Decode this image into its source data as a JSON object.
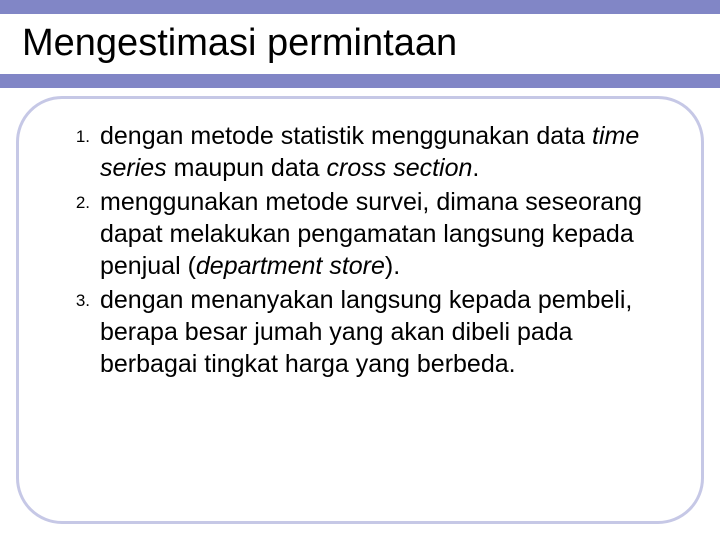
{
  "colors": {
    "accent": "#8186c6",
    "frame": "#c6c8e6",
    "text": "#000000",
    "background": "#ffffff"
  },
  "title": "Mengestimasi permintaan",
  "items": [
    {
      "num": "1.",
      "plain1": "dengan metode statistik menggunakan data ",
      "ital1": "time series",
      "plain2": " maupun data ",
      "ital2": "cross section",
      "plain3": "."
    },
    {
      "num": "2.",
      "plain1": "menggunakan metode survei, dimana seseorang dapat melakukan pengamatan langsung kepada penjual (",
      "ital1": "department store",
      "plain2": ").",
      "ital2": "",
      "plain3": ""
    },
    {
      "num": "3.",
      "plain1": "dengan menanyakan langsung kepada pembeli, berapa besar jumah yang akan dibeli pada berbagai tingkat harga yang berbeda.",
      "ital1": "",
      "plain2": "",
      "ital2": "",
      "plain3": ""
    }
  ]
}
